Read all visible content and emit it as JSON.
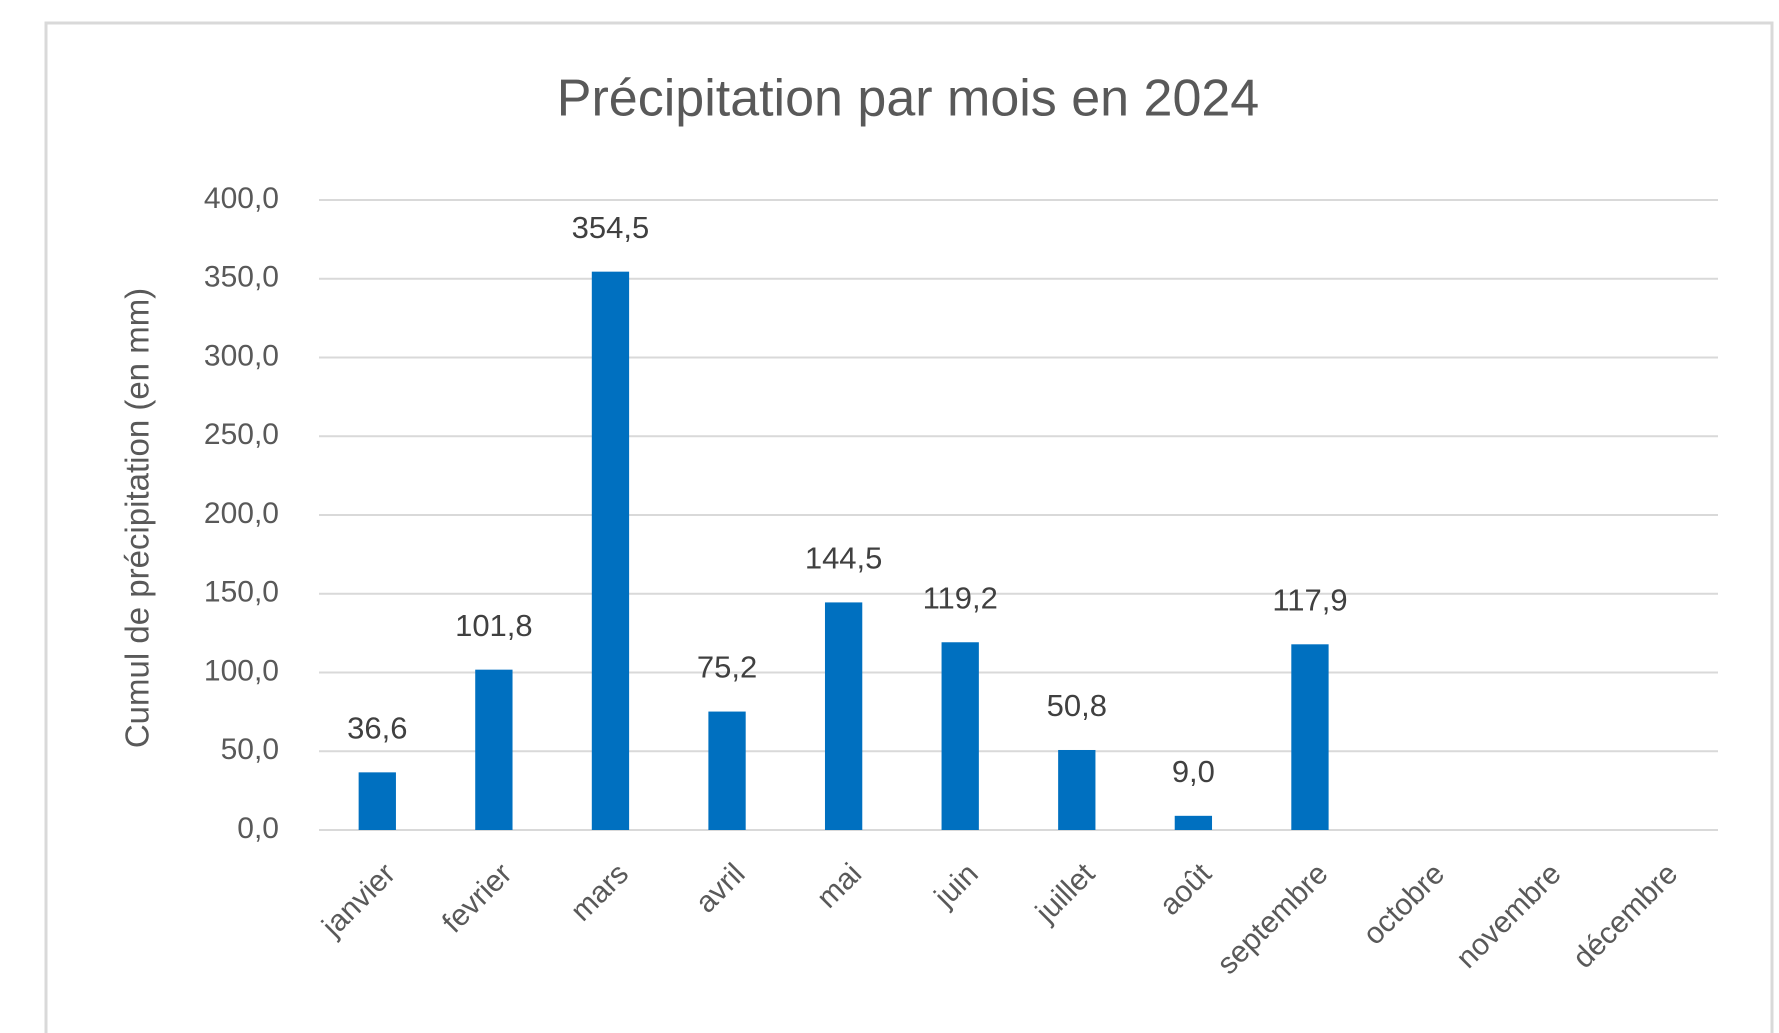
{
  "chart_data": {
    "type": "bar",
    "title": "Précipitation par mois en 2024",
    "y_label": "Cumul de précipitation (en mm)",
    "categories": [
      "janvier",
      "fevrier",
      "mars",
      "avril",
      "mai",
      "juin",
      "juillet",
      "août",
      "septembre",
      "octobre",
      "novembre",
      "décembre"
    ],
    "values": [
      36.6,
      101.8,
      354.5,
      75.2,
      144.5,
      119.2,
      50.8,
      9.0,
      117.9,
      null,
      null,
      null
    ],
    "value_labels": [
      "36,6",
      "101,8",
      "354,5",
      "75,2",
      "144,5",
      "119,2",
      "50,8",
      "9,0",
      "117,9",
      null,
      null,
      null
    ],
    "color": "#0070c0",
    "ylim": [
      0,
      400
    ],
    "yticks": [
      {
        "value": 0,
        "label": "0,0"
      },
      {
        "value": 50,
        "label": "50,0"
      },
      {
        "value": 100,
        "label": "100,0"
      },
      {
        "value": 150,
        "label": "150,0"
      },
      {
        "value": 200,
        "label": "200,0"
      },
      {
        "value": 250,
        "label": "250,0"
      },
      {
        "value": 300,
        "label": "300,0"
      },
      {
        "value": 350,
        "label": "350,0"
      },
      {
        "value": 400,
        "label": "400,0"
      }
    ],
    "grid": true
  }
}
